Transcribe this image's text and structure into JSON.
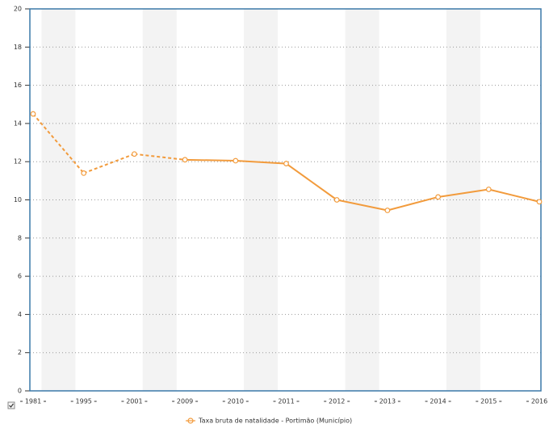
{
  "chart_data": {
    "type": "line",
    "categories": [
      "1981",
      "1995",
      "2001",
      "2009",
      "2010",
      "2011",
      "2012",
      "2013",
      "2014",
      "2015",
      "2016"
    ],
    "series": [
      {
        "name": "Taxa bruta de natalidade - Portimão (Município)",
        "color": "#f29b3c",
        "values": [
          14.5,
          11.4,
          12.4,
          12.1,
          12.05,
          11.9,
          10.0,
          9.45,
          10.15,
          10.55,
          9.9
        ],
        "dashed_segments": 3
      }
    ],
    "ylim": [
      0,
      20
    ],
    "yticks": [
      0,
      2,
      4,
      6,
      8,
      10,
      12,
      14,
      16,
      18,
      20
    ],
    "grid": true
  }
}
